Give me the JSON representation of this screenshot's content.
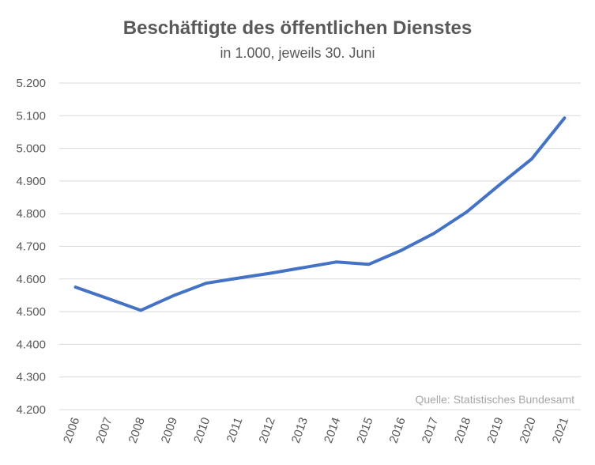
{
  "chart_data": {
    "type": "line",
    "title": "Beschäftigte des öffentlichen Dienstes",
    "subtitle": "in 1.000, jeweils 30. Juni",
    "xlabel": "",
    "ylabel": "",
    "categories": [
      "2006",
      "2007",
      "2008",
      "2009",
      "2010",
      "2011",
      "2012",
      "2013",
      "2014",
      "2015",
      "2016",
      "2017",
      "2018",
      "2019",
      "2020",
      "2021"
    ],
    "series": [
      {
        "values": [
          4575,
          4540,
          4504,
          4549,
          4587,
          4603,
          4618,
          4635,
          4652,
          4645,
          4688,
          4740,
          4805,
          4888,
          4968,
          5093
        ]
      }
    ],
    "ylim": [
      4200,
      5200
    ],
    "yticks": [
      4200,
      4300,
      4400,
      4500,
      4600,
      4700,
      4800,
      4900,
      5000,
      5100,
      5200
    ],
    "ytick_labels": [
      "4.200",
      "4.300",
      "4.400",
      "4.500",
      "4.600",
      "4.700",
      "4.800",
      "4.900",
      "5.000",
      "5.100",
      "5.200"
    ],
    "grid": true,
    "legend": "none",
    "line_color": "#4472c4",
    "grid_color": "#d9d9d9",
    "source_note": "Quelle: Statistisches Bundesamt"
  }
}
